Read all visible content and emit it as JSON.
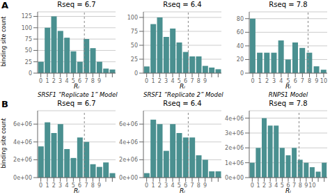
{
  "chart_data": [
    {
      "type": "bar",
      "title": "Rseq = 6.7",
      "subtitle": "SRSF1 “Replicate 1” Model",
      "annotation": "A",
      "xlabel": "Rᵢ",
      "ylabel": "binding site count",
      "categories": [
        "0",
        "1",
        "2",
        "3",
        "4",
        "5",
        "6",
        "7",
        "8",
        "9",
        null,
        null
      ],
      "values": [
        25,
        100,
        125,
        93,
        78,
        48,
        25,
        75,
        55,
        25,
        10,
        8
      ],
      "color": "#4a9090",
      "ylim": [
        0,
        135
      ],
      "yticks": [
        0,
        25,
        50,
        75,
        100,
        125
      ],
      "vline": 6.7,
      "grid": true
    },
    {
      "type": "bar",
      "title": "Rseq = 6.4",
      "subtitle": "SRSF1 “Replicate 2” Model",
      "xlabel": "Rᵢ",
      "categories": [
        "0",
        "1",
        "2",
        "3",
        "4",
        "5",
        "6",
        "7",
        "8",
        "9",
        null,
        null
      ],
      "values": [
        12,
        88,
        100,
        65,
        80,
        55,
        38,
        30,
        30,
        13,
        10,
        7
      ],
      "color": "#4a9090",
      "ylim": [
        0,
        110
      ],
      "yticks": [
        0,
        25,
        50,
        75,
        100
      ],
      "vline": 6.4,
      "grid": true
    },
    {
      "type": "bar",
      "title": "Rseq = 7.8",
      "subtitle": "RNPS1 Model",
      "xlabel": "Rᵢ",
      "categories": [
        "0",
        "1",
        "2",
        "3",
        "4",
        "5",
        "6",
        "7",
        "8",
        "9",
        "10"
      ],
      "values": [
        80,
        30,
        30,
        30,
        48,
        20,
        45,
        37,
        30,
        10,
        5
      ],
      "color": "#4a9090",
      "ylim": [
        0,
        90
      ],
      "yticks": [
        0,
        20,
        40,
        60,
        80
      ],
      "vline": 7.8,
      "grid": true
    },
    {
      "type": "bar",
      "title": "Rseq = 6.7",
      "annotation": "B",
      "xlabel": "Rᵢ",
      "ylabel": "binding site count",
      "categories": [
        "0",
        "1",
        "2",
        "3",
        "4",
        "5",
        "6",
        "7",
        "8",
        "9",
        null,
        null
      ],
      "values": [
        3500000,
        6200000,
        5000000,
        6000000,
        3200000,
        2200000,
        4500000,
        4000000,
        1500000,
        1200000,
        1700000,
        500000
      ],
      "color": "#4a9090",
      "ylim": [
        0,
        7500000
      ],
      "yticks": [
        {
          "value": 0,
          "label": "0e+00"
        },
        {
          "value": 2000000,
          "label": "2e+06"
        },
        {
          "value": 4000000,
          "label": "4e+06"
        },
        {
          "value": 6000000,
          "label": "6e+06"
        }
      ],
      "vline": 6.7,
      "grid": true
    },
    {
      "type": "bar",
      "title": "Rseq = 6.4",
      "xlabel": "Rᵢ",
      "categories": [
        "0",
        "1",
        "2",
        "3",
        "4",
        "5",
        "6",
        "7",
        "8",
        "9",
        null,
        null
      ],
      "values": [
        500000,
        6500000,
        6000000,
        3000000,
        6000000,
        5000000,
        4500000,
        4500000,
        2500000,
        2000000,
        700000,
        700000
      ],
      "color": "#4a9090",
      "ylim": [
        0,
        7500000
      ],
      "yticks": [
        {
          "value": 0,
          "label": "0e+00"
        },
        {
          "value": 2000000,
          "label": "2e+06"
        },
        {
          "value": 4000000,
          "label": "4e+06"
        },
        {
          "value": 6000000,
          "label": "6e+06"
        }
      ],
      "vline": 6.4,
      "grid": true
    },
    {
      "type": "bar",
      "title": "Rseq = 7.8",
      "xlabel": "Rᵢ",
      "categories": [
        "0",
        "1",
        "2",
        "3",
        "4",
        "5",
        "6",
        "7",
        "8",
        "9",
        "10",
        null,
        null
      ],
      "values": [
        1000000,
        2000000,
        4000000,
        3500000,
        3500000,
        2000000,
        1500000,
        2000000,
        1200000,
        1000000,
        700000,
        400000,
        1000000
      ],
      "color": "#4a9090",
      "ylim": [
        0,
        4500000
      ],
      "yticks": [
        {
          "value": 0,
          "label": "0e+00"
        },
        {
          "value": 1000000,
          "label": "1e+06"
        },
        {
          "value": 2000000,
          "label": "2e+06"
        },
        {
          "value": 3000000,
          "label": "3e+06"
        },
        {
          "value": 4000000,
          "label": "4e+06"
        }
      ],
      "vline": 7.8,
      "grid": true
    }
  ]
}
